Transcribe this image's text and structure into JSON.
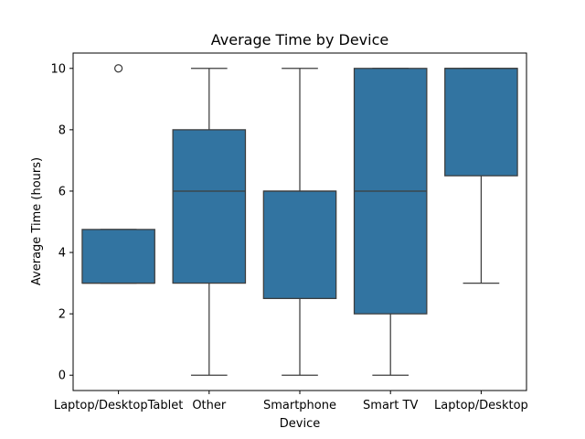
{
  "chart_data": {
    "type": "box",
    "title": "Average Time by Device",
    "xlabel": "Device",
    "ylabel": "Average Time (hours)",
    "ylim": [
      -0.5,
      10.5
    ],
    "yticks": [
      0,
      2,
      4,
      6,
      8,
      10
    ],
    "grid": false,
    "box_color": "#3274a1",
    "line_color": "#3d3d3d",
    "categories": [
      "Laptop/DesktopTablet",
      "Other",
      "Smartphone",
      "Smart TV",
      "Laptop/Desktop"
    ],
    "boxes": [
      {
        "whisker_low": 3,
        "q1": 3,
        "median": 3,
        "q3": 4.75,
        "whisker_high": 4.75,
        "outliers": [
          10
        ]
      },
      {
        "whisker_low": 0,
        "q1": 3,
        "median": 6,
        "q3": 8,
        "whisker_high": 10,
        "outliers": []
      },
      {
        "whisker_low": 0,
        "q1": 2.5,
        "median": 6,
        "q3": 6,
        "whisker_high": 10,
        "outliers": []
      },
      {
        "whisker_low": 0,
        "q1": 2,
        "median": 6,
        "q3": 10,
        "whisker_high": 10,
        "outliers": []
      },
      {
        "whisker_low": 3,
        "q1": 6.5,
        "median": 10,
        "q3": 10,
        "whisker_high": 10,
        "outliers": []
      }
    ]
  }
}
